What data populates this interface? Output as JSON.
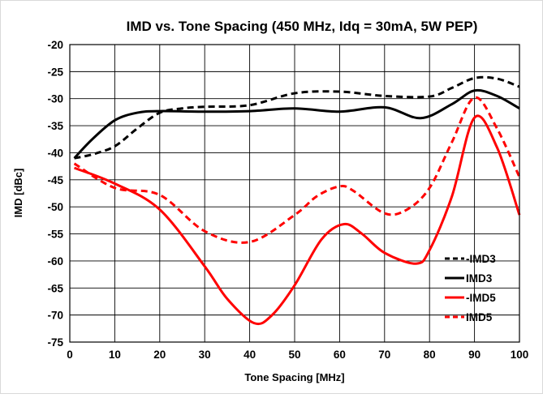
{
  "chart_data": {
    "type": "line",
    "title": "IMD vs. Tone Spacing (450 MHz, Idq = 30mA, 5W PEP)",
    "xlabel": "Tone Spacing [MHz]",
    "ylabel": "IMD [dBc]",
    "xlim": [
      0,
      100
    ],
    "ylim": [
      -75,
      -20
    ],
    "x_ticks": [
      "0",
      "10",
      "20",
      "30",
      "40",
      "50",
      "60",
      "70",
      "80",
      "90",
      "100"
    ],
    "y_ticks": [
      "-20",
      "-25",
      "-30",
      "-35",
      "-40",
      "-45",
      "-50",
      "-55",
      "-60",
      "-65",
      "-70",
      "-75"
    ],
    "grid": true,
    "legend_position": "bottom-right",
    "series": [
      {
        "name": "-IMD3",
        "color": "#000000",
        "dash": "dashed",
        "x": [
          1,
          5,
          10,
          15,
          20,
          25,
          30,
          40,
          50,
          60,
          70,
          80,
          85,
          90,
          95,
          100
        ],
        "y": [
          -41,
          -40.3,
          -38.8,
          -35.5,
          -32.6,
          -31.8,
          -31.5,
          -31.2,
          -29.0,
          -28.7,
          -29.5,
          -29.6,
          -28.0,
          -26.2,
          -26.3,
          -27.8
        ]
      },
      {
        "name": "IMD3",
        "color": "#000000",
        "dash": "solid",
        "x": [
          1,
          5,
          10,
          15,
          20,
          30,
          40,
          50,
          60,
          70,
          78,
          85,
          90,
          95,
          100
        ],
        "y": [
          -41,
          -37.5,
          -34.0,
          -32.6,
          -32.3,
          -32.4,
          -32.3,
          -31.8,
          -32.4,
          -31.6,
          -33.6,
          -31.0,
          -28.5,
          -29.5,
          -31.8
        ]
      },
      {
        "name": "-IMD5",
        "color": "#ff0000",
        "dash": "solid",
        "x": [
          1,
          10,
          20,
          30,
          35,
          41,
          45,
          50,
          56,
          61,
          65,
          70,
          77,
          80,
          85,
          90,
          95,
          100
        ],
        "y": [
          -42.8,
          -45.7,
          -50.5,
          -61.0,
          -67.0,
          -71.5,
          -70.0,
          -64.5,
          -56.0,
          -53.2,
          -55.0,
          -58.5,
          -60.5,
          -58.0,
          -48.0,
          -33.5,
          -39.0,
          -51.5
        ]
      },
      {
        "name": "IMD5",
        "color": "#ff0000",
        "dash": "dashed",
        "x": [
          1,
          10,
          20,
          30,
          40,
          50,
          55,
          60,
          63,
          70,
          75,
          80,
          85,
          90,
          95,
          100
        ],
        "y": [
          -42.0,
          -46.5,
          -47.8,
          -54.5,
          -56.5,
          -51.5,
          -48.0,
          -46.2,
          -47.0,
          -51.2,
          -50.5,
          -46.5,
          -38.0,
          -29.8,
          -35.5,
          -44.5
        ]
      }
    ]
  }
}
